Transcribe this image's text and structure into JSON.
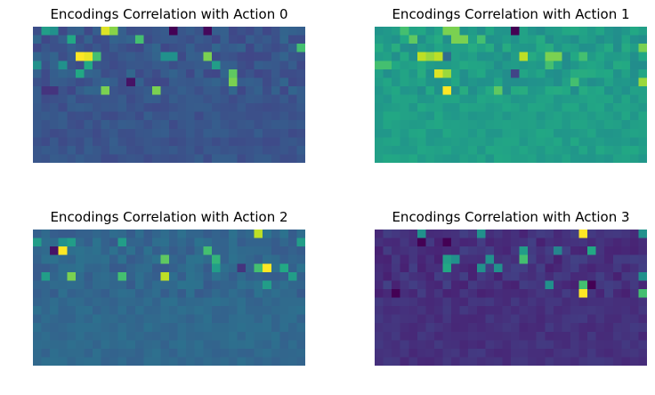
{
  "chart_data": [
    {
      "type": "heatmap",
      "title": "Encodings Correlation with Action 0",
      "colormap": "viridis",
      "rows": 16,
      "cols": 32,
      "base": 0.27,
      "base_lower": 0.26,
      "noise": 0.06,
      "seed": 11,
      "highlights": [
        [
          0,
          8,
          0.95
        ],
        [
          0,
          9,
          0.82
        ],
        [
          0,
          16,
          0.0
        ],
        [
          0,
          20,
          0.02
        ],
        [
          0,
          1,
          0.55
        ],
        [
          0,
          2,
          0.5
        ],
        [
          1,
          12,
          0.7
        ],
        [
          1,
          4,
          0.6
        ],
        [
          2,
          31,
          0.7
        ],
        [
          3,
          5,
          1.0
        ],
        [
          3,
          6,
          0.97
        ],
        [
          3,
          7,
          0.7
        ],
        [
          3,
          20,
          0.8
        ],
        [
          3,
          15,
          0.5
        ],
        [
          3,
          16,
          0.5
        ],
        [
          4,
          21,
          0.55
        ],
        [
          4,
          0,
          0.5
        ],
        [
          4,
          3,
          0.5
        ],
        [
          4,
          6,
          0.6
        ],
        [
          5,
          5,
          0.6
        ],
        [
          5,
          23,
          0.75
        ],
        [
          6,
          23,
          0.8
        ],
        [
          6,
          11,
          0.05
        ],
        [
          7,
          8,
          0.8
        ],
        [
          7,
          14,
          0.8
        ],
        [
          7,
          1,
          0.15
        ],
        [
          7,
          2,
          0.15
        ]
      ]
    },
    {
      "type": "heatmap",
      "title": "Encodings Correlation with Action 1",
      "colormap": "viridis",
      "rows": 16,
      "cols": 32,
      "base": 0.55,
      "base_lower": 0.56,
      "noise": 0.07,
      "seed": 23,
      "highlights": [
        [
          0,
          16,
          0.0
        ],
        [
          0,
          8,
          0.8
        ],
        [
          0,
          9,
          0.8
        ],
        [
          0,
          3,
          0.7
        ],
        [
          1,
          9,
          0.8
        ],
        [
          1,
          10,
          0.8
        ],
        [
          1,
          4,
          0.75
        ],
        [
          1,
          12,
          0.7
        ],
        [
          2,
          31,
          0.8
        ],
        [
          3,
          5,
          0.9
        ],
        [
          3,
          6,
          0.85
        ],
        [
          3,
          7,
          0.9
        ],
        [
          3,
          17,
          0.9
        ],
        [
          3,
          20,
          0.8
        ],
        [
          3,
          21,
          0.8
        ],
        [
          3,
          8,
          0.35
        ],
        [
          3,
          24,
          0.7
        ],
        [
          4,
          0,
          0.7
        ],
        [
          4,
          1,
          0.7
        ],
        [
          4,
          20,
          0.7
        ],
        [
          5,
          7,
          0.95
        ],
        [
          5,
          8,
          0.85
        ],
        [
          5,
          16,
          0.2
        ],
        [
          6,
          31,
          0.85
        ],
        [
          6,
          23,
          0.7
        ],
        [
          7,
          8,
          1.0
        ],
        [
          7,
          14,
          0.75
        ]
      ]
    },
    {
      "type": "heatmap",
      "title": "Encodings Correlation with Action 2",
      "colormap": "viridis",
      "rows": 16,
      "cols": 32,
      "base": 0.33,
      "base_lower": 0.34,
      "noise": 0.05,
      "seed": 37,
      "highlights": [
        [
          0,
          26,
          0.9
        ],
        [
          1,
          0,
          0.55
        ],
        [
          1,
          3,
          0.5
        ],
        [
          1,
          4,
          0.55
        ],
        [
          1,
          10,
          0.55
        ],
        [
          1,
          31,
          0.55
        ],
        [
          2,
          2,
          0.05
        ],
        [
          2,
          3,
          1.0
        ],
        [
          2,
          20,
          0.7
        ],
        [
          3,
          15,
          0.75
        ],
        [
          3,
          21,
          0.65
        ],
        [
          4,
          24,
          0.15
        ],
        [
          4,
          26,
          0.7
        ],
        [
          4,
          27,
          1.0
        ],
        [
          4,
          29,
          0.6
        ],
        [
          4,
          21,
          0.55
        ],
        [
          5,
          1,
          0.55
        ],
        [
          5,
          4,
          0.8
        ],
        [
          5,
          10,
          0.7
        ],
        [
          5,
          15,
          0.9
        ],
        [
          5,
          30,
          0.55
        ],
        [
          6,
          27,
          0.55
        ]
      ]
    },
    {
      "type": "heatmap",
      "title": "Encodings Correlation with Action 3",
      "colormap": "viridis",
      "rows": 16,
      "cols": 32,
      "base": 0.14,
      "base_lower": 0.14,
      "noise": 0.05,
      "seed": 51,
      "highlights": [
        [
          0,
          24,
          1.0
        ],
        [
          0,
          5,
          0.5
        ],
        [
          0,
          12,
          0.5
        ],
        [
          0,
          31,
          0.5
        ],
        [
          1,
          5,
          0.0
        ],
        [
          1,
          8,
          0.0
        ],
        [
          2,
          17,
          0.55
        ],
        [
          2,
          25,
          0.6
        ],
        [
          2,
          21,
          0.45
        ],
        [
          3,
          8,
          0.55
        ],
        [
          3,
          9,
          0.5
        ],
        [
          3,
          13,
          0.5
        ],
        [
          3,
          17,
          0.7
        ],
        [
          4,
          8,
          0.6
        ],
        [
          4,
          14,
          0.5
        ],
        [
          4,
          12,
          0.5
        ],
        [
          5,
          31,
          0.5
        ],
        [
          6,
          20,
          0.5
        ],
        [
          6,
          24,
          0.7
        ],
        [
          6,
          25,
          0.0
        ],
        [
          7,
          2,
          0.0
        ],
        [
          7,
          24,
          1.0
        ],
        [
          7,
          31,
          0.7
        ]
      ]
    }
  ]
}
